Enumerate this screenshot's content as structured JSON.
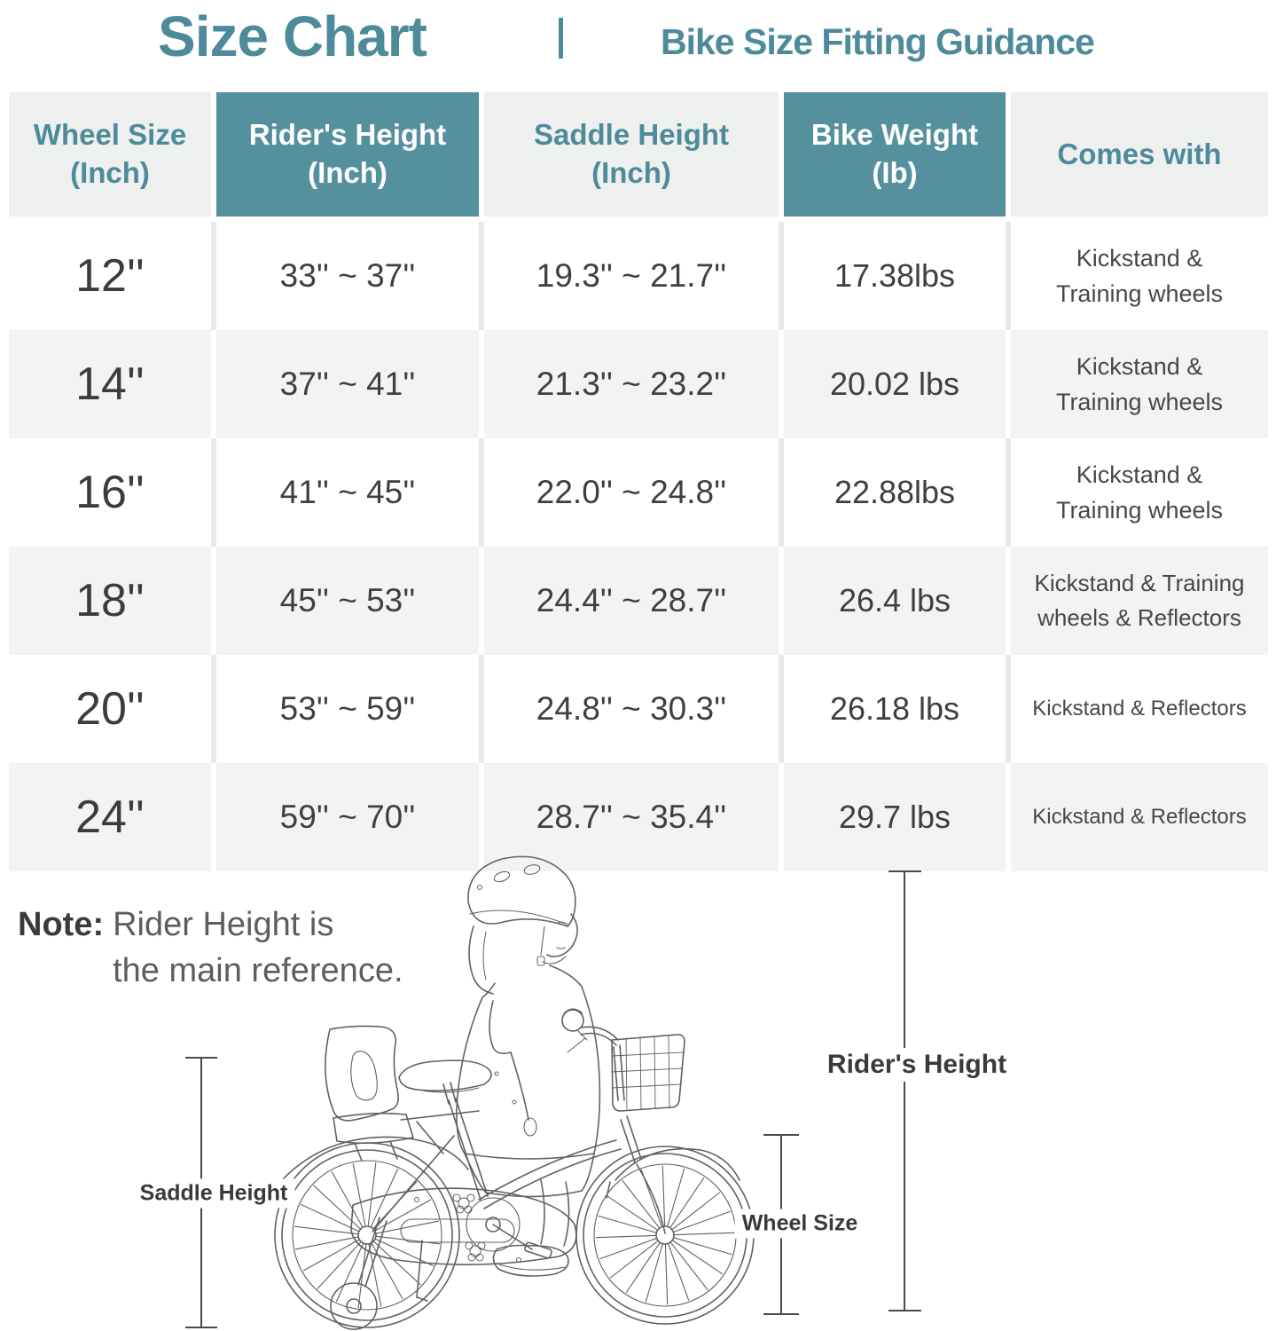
{
  "title": {
    "main": "Size Chart",
    "subtitle": "Bike Size Fitting Guidance"
  },
  "chart_data": {
    "type": "table",
    "title": "Size Chart | Bike Size Fitting Guidance",
    "columns": [
      "Wheel Size\n(Inch)",
      "Rider's Height\n(Inch)",
      "Saddle Height\n(Inch)",
      "Bike Weight\n(Ib)",
      "Comes with"
    ],
    "rows": [
      [
        "12''",
        "33'' ~ 37''",
        "19.3'' ~ 21.7''",
        "17.38lbs",
        "Kickstand &\nTraining wheels"
      ],
      [
        "14''",
        "37'' ~ 41''",
        "21.3'' ~ 23.2''",
        "20.02 lbs",
        "Kickstand &\nTraining wheels"
      ],
      [
        "16''",
        "41'' ~ 45''",
        "22.0'' ~ 24.8''",
        "22.88lbs",
        "Kickstand &\nTraining wheels"
      ],
      [
        "18''",
        "45'' ~ 53''",
        "24.4'' ~ 28.7''",
        "26.4 lbs",
        "Kickstand & Training\nwheels & Reflectors"
      ],
      [
        "20''",
        "53'' ~ 59''",
        "24.8'' ~ 30.3''",
        "26.18 lbs",
        "Kickstand & Reflectors"
      ],
      [
        "24''",
        "59'' ~ 70''",
        "28.7'' ~ 35.4''",
        "29.7 lbs",
        "Kickstand & Reflectors"
      ]
    ]
  },
  "note": {
    "label": "Note:",
    "text": "Rider Height is\nthe main reference."
  },
  "diagram": {
    "labels": {
      "saddle_height": "Saddle Height",
      "wheel_size": "Wheel Size",
      "riders_height": "Rider's Height"
    }
  },
  "colors": {
    "accent_teal": "#55909e",
    "title_teal": "#4e8b9a",
    "header_gray": "#eef0ef",
    "row_gray": "#f2f3f2",
    "text_dark": "#3f3f3f"
  }
}
